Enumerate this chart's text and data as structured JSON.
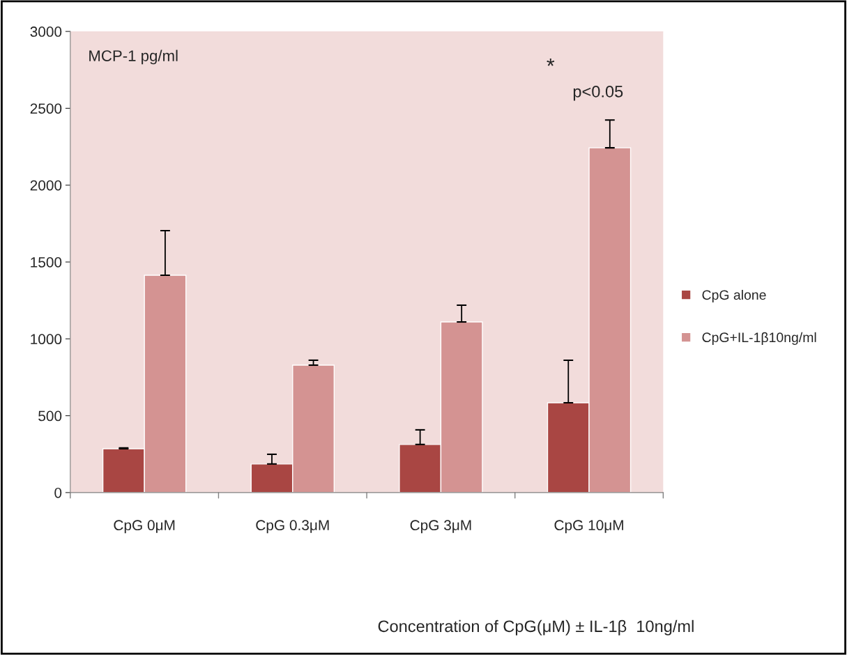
{
  "chart_data": {
    "type": "bar",
    "categories": [
      "CpG 0μM",
      "CpG 0.3μM",
      "CpG 3μM",
      "CpG 10μM"
    ],
    "series": [
      {
        "name": "CpG alone",
        "color": "#a94643",
        "values": [
          285,
          186,
          313,
          584
        ],
        "errors": [
          [
            285,
            290
          ],
          [
            186,
            249
          ],
          [
            313,
            408
          ],
          [
            584,
            861
          ]
        ]
      },
      {
        "name": "CpG+IL-1β10ng/ml",
        "color": "#d49392",
        "values": [
          1414,
          829,
          1110,
          2243
        ],
        "errors": [
          [
            1414,
            1704
          ],
          [
            829,
            861
          ],
          [
            1110,
            1219
          ],
          [
            2243,
            2424
          ]
        ]
      }
    ],
    "ylim": [
      0,
      3000
    ],
    "yticks": [
      0,
      500,
      1000,
      1500,
      2000,
      2500,
      3000
    ],
    "grid": false,
    "legend": "right",
    "annotations": [
      "MCP-1 pg/ml",
      "*",
      "p<0.05",
      "Concentration of CpG(μM) ± IL-1β  10ng/ml"
    ]
  }
}
